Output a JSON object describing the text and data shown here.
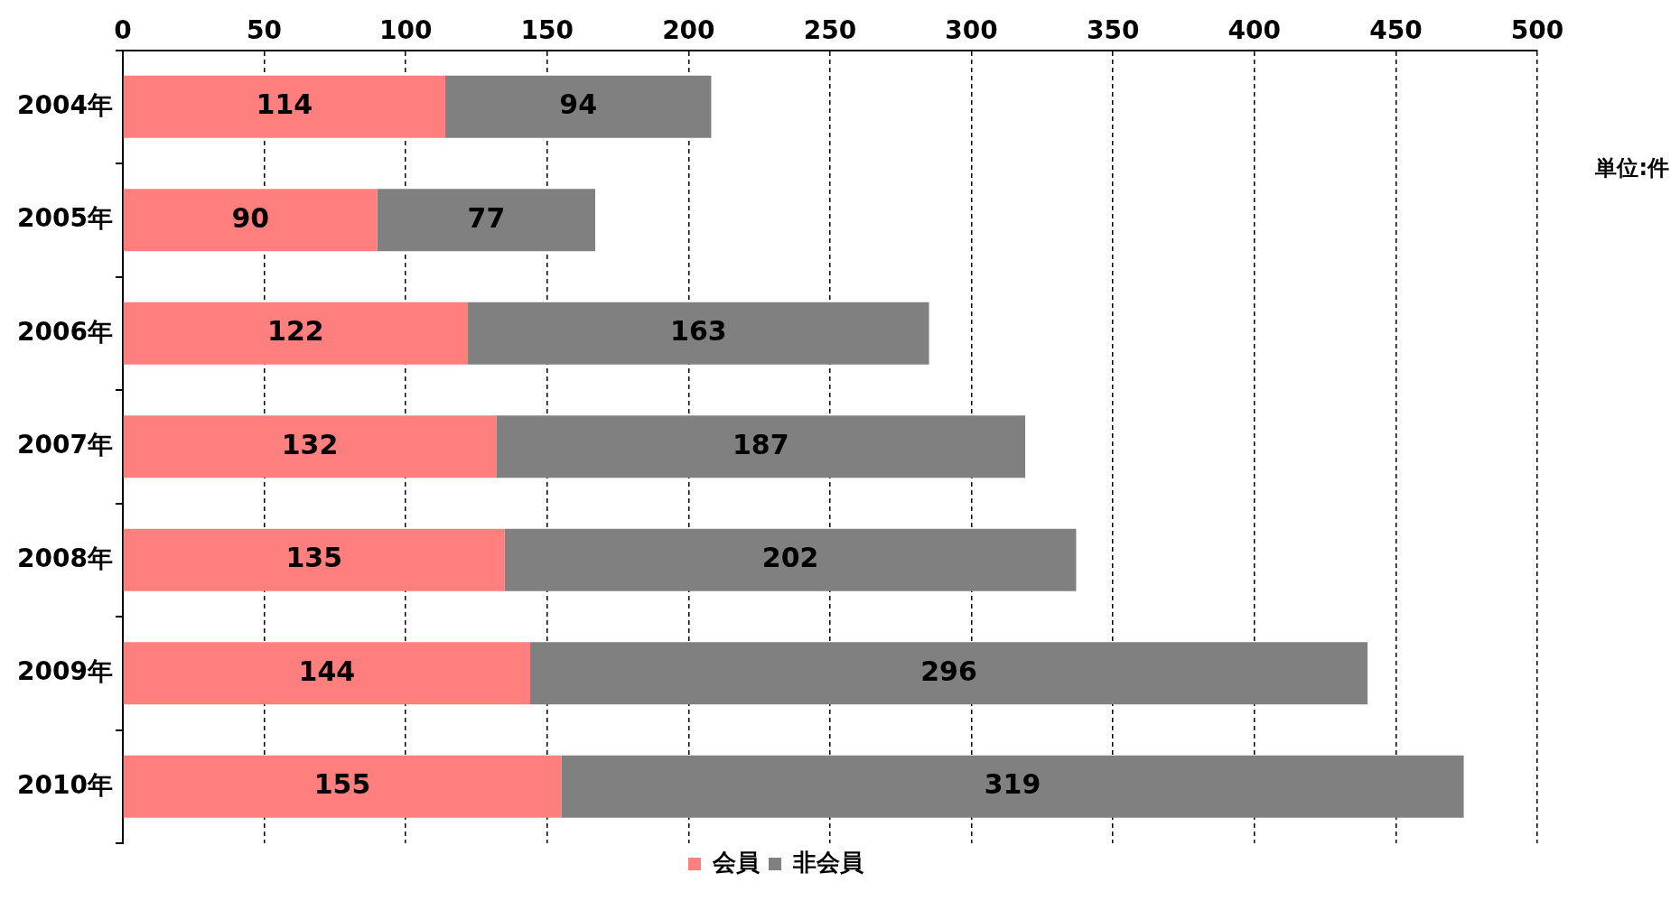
{
  "chart_data": {
    "type": "bar",
    "orientation": "horizontal",
    "stacked": true,
    "categories": [
      "2004年",
      "2005年",
      "2006年",
      "2007年",
      "2008年",
      "2009年",
      "2010年"
    ],
    "series": [
      {
        "name": "会員",
        "color": "#ff7f7f",
        "values": [
          114,
          90,
          122,
          132,
          135,
          144,
          155
        ]
      },
      {
        "name": "非会員",
        "color": "#808080",
        "values": [
          94,
          77,
          163,
          187,
          202,
          296,
          319
        ]
      }
    ],
    "xlim": [
      0,
      500
    ],
    "xticks": [
      0,
      50,
      100,
      150,
      200,
      250,
      300,
      350,
      400,
      450,
      500
    ],
    "grid": "x",
    "legend": "bottom",
    "data_labels": true,
    "annotations": [
      "単位:件"
    ]
  }
}
